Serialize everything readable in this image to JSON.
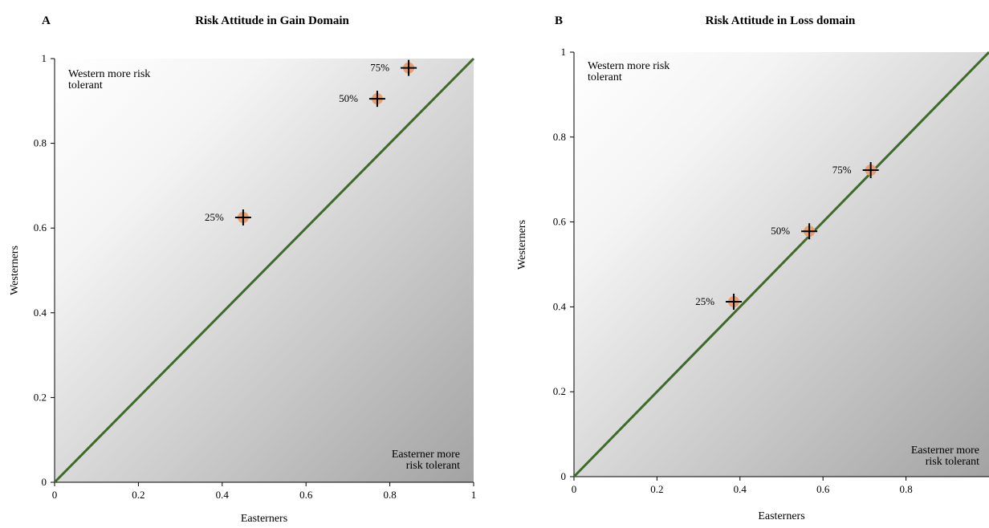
{
  "chart_data": [
    {
      "type": "scatter",
      "panel_letter": "A",
      "title": "Risk Attitude in Gain Domain",
      "xlabel": "Easterners",
      "ylabel": "Westerners",
      "xlim": [
        0,
        1
      ],
      "ylim": [
        0,
        1
      ],
      "xticks": [
        "0",
        "0.2",
        "0.4",
        "0.6",
        "0.8",
        "1"
      ],
      "yticks": [
        "0",
        "0.2",
        "0.4",
        "0.6",
        "0.8",
        "1"
      ],
      "reference_line": "y = x",
      "region_labels": {
        "upper_left": [
          "Western more risk",
          "tolerant"
        ],
        "lower_right": [
          "Easterner more",
          "risk tolerant"
        ]
      },
      "points": [
        {
          "label": "25%",
          "x": 0.45,
          "y": 0.625
        },
        {
          "label": "50%",
          "x": 0.77,
          "y": 0.905
        },
        {
          "label": "75%",
          "x": 0.845,
          "y": 0.978
        }
      ],
      "colors": {
        "line": "#3f6b2a",
        "marker": "#e8a070",
        "cross": "#000000"
      }
    },
    {
      "type": "scatter",
      "panel_letter": "B",
      "title": "Risk Attitude in Loss domain",
      "xlabel": "Easterners",
      "ylabel": "Westerners",
      "xlim": [
        0,
        1
      ],
      "ylim": [
        0,
        1
      ],
      "xticks": [
        "0",
        "0.2",
        "0.4",
        "0.6",
        "0.8"
      ],
      "yticks": [
        "0",
        "0.2",
        "0.4",
        "0.6",
        "0.8",
        "1"
      ],
      "reference_line": "y = x",
      "region_labels": {
        "upper_left": [
          "Western more risk",
          "tolerant"
        ],
        "lower_right": [
          "Easterner more",
          "risk tolerant"
        ]
      },
      "points": [
        {
          "label": "25%",
          "x": 0.385,
          "y": 0.412
        },
        {
          "label": "50%",
          "x": 0.567,
          "y": 0.578
        },
        {
          "label": "75%",
          "x": 0.715,
          "y": 0.722
        }
      ],
      "colors": {
        "line": "#3f6b2a",
        "marker": "#e8a070",
        "cross": "#000000"
      }
    }
  ]
}
